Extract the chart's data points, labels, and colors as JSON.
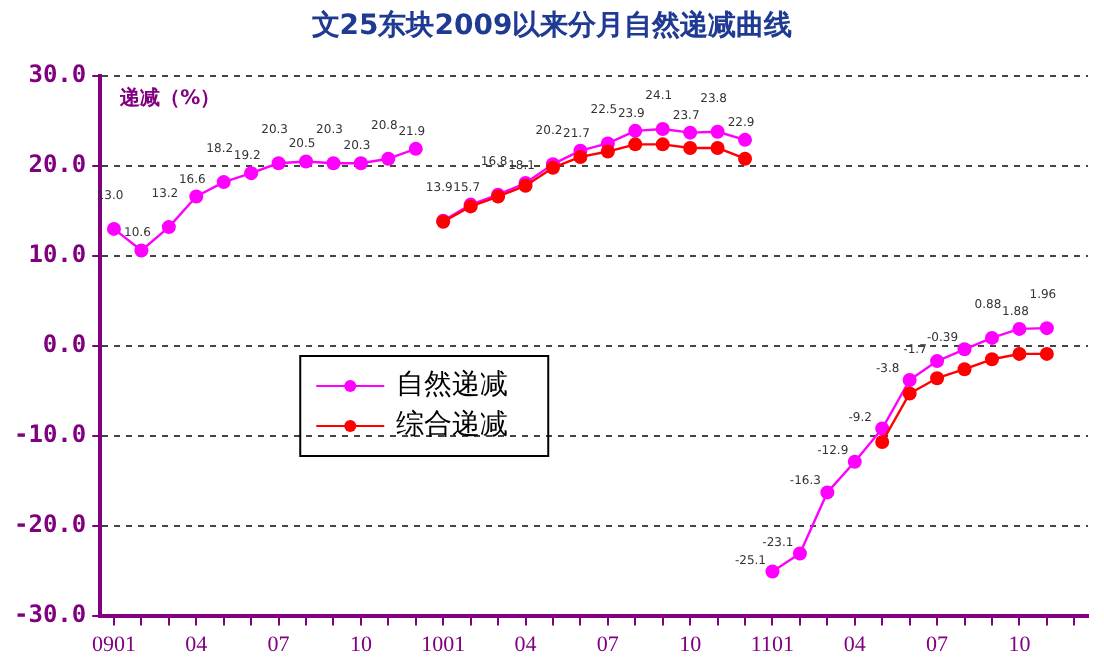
{
  "chart_data": {
    "type": "line",
    "title": "文25东块2009以来分月自然递减曲线",
    "ylabel": "递减（%）",
    "categories": [
      "0901",
      null,
      null,
      "04",
      null,
      null,
      "07",
      null,
      null,
      "10",
      null,
      null,
      "1001",
      null,
      null,
      "04",
      null,
      null,
      "07",
      null,
      null,
      "10",
      null,
      null,
      "1101",
      null,
      null,
      "04",
      null,
      null,
      "07",
      null,
      null,
      "10",
      null,
      null
    ],
    "series": [
      {
        "name": "自然递减",
        "color": "#ff00ff",
        "values": [
          13.0,
          10.6,
          13.2,
          16.6,
          18.2,
          19.2,
          20.3,
          20.5,
          20.3,
          20.3,
          20.8,
          21.9,
          null,
          null,
          null,
          null,
          null,
          null,
          null,
          null,
          null,
          null,
          null,
          null,
          null,
          null,
          null,
          null,
          null,
          null,
          null,
          null,
          null,
          null,
          null,
          null
        ],
        "value_labels": [
          "13.0",
          "10.6",
          "13.2",
          "16.6",
          "18.2",
          "19.2",
          "20.3",
          "20.5",
          "20.3",
          "20.3",
          "20.8",
          "21.9",
          null,
          null,
          null,
          null,
          null,
          null,
          null,
          null,
          null,
          null,
          null,
          null,
          null,
          null,
          null,
          null,
          null,
          null,
          null,
          null,
          null,
          null,
          null,
          null
        ]
      },
      {
        "color": "#ff00ff",
        "values": [
          null,
          null,
          null,
          null,
          null,
          null,
          null,
          null,
          null,
          null,
          null,
          null,
          13.9,
          15.7,
          16.8,
          18.1,
          20.2,
          21.7,
          22.5,
          23.9,
          24.1,
          23.7,
          23.8,
          22.9,
          null,
          null,
          null,
          null,
          null,
          null,
          null,
          null,
          null,
          null,
          null,
          null
        ],
        "value_labels": [
          null,
          null,
          null,
          null,
          null,
          null,
          null,
          null,
          null,
          null,
          null,
          null,
          "13.9",
          "15.7",
          "16.8",
          "18.1",
          "20.2",
          "21.7",
          "22.5",
          "23.9",
          "24.1",
          "23.7",
          "23.8",
          "22.9",
          null,
          null,
          null,
          null,
          null,
          null,
          null,
          null,
          null,
          null,
          null,
          null
        ]
      },
      {
        "color": "#ff00ff",
        "values": [
          null,
          null,
          null,
          null,
          null,
          null,
          null,
          null,
          null,
          null,
          null,
          null,
          null,
          null,
          null,
          null,
          null,
          null,
          null,
          null,
          null,
          null,
          null,
          null,
          -25.1,
          -23.1,
          -16.3,
          -12.9,
          -9.2,
          -3.8,
          -1.7,
          -0.39,
          0.88,
          1.88,
          1.96,
          null
        ],
        "value_labels": [
          null,
          null,
          null,
          null,
          null,
          null,
          null,
          null,
          null,
          null,
          null,
          null,
          null,
          null,
          null,
          null,
          null,
          null,
          null,
          null,
          null,
          null,
          null,
          null,
          "-25.1",
          "-23.1",
          "-16.3",
          "-12.9",
          "-9.2",
          "-3.8",
          "-1.7",
          "-0.39",
          "0.88",
          "1.88",
          "1.96",
          null
        ]
      },
      {
        "name": "综合递减",
        "color": "#ff0000",
        "values": [
          null,
          null,
          null,
          null,
          null,
          null,
          null,
          null,
          null,
          null,
          null,
          null,
          13.8,
          15.5,
          16.6,
          17.8,
          19.8,
          21.0,
          21.6,
          22.4,
          22.4,
          22.0,
          22.0,
          20.8,
          null,
          null,
          null,
          null,
          null,
          null,
          null,
          null,
          null,
          null,
          null,
          null
        ]
      },
      {
        "color": "#ff0000",
        "values": [
          null,
          null,
          null,
          null,
          null,
          null,
          null,
          null,
          null,
          null,
          null,
          null,
          null,
          null,
          null,
          null,
          null,
          null,
          null,
          null,
          null,
          null,
          null,
          null,
          null,
          null,
          null,
          null,
          -10.7,
          -5.3,
          -3.6,
          -2.6,
          -1.5,
          -0.9,
          -0.9,
          null
        ]
      }
    ],
    "ylim": [
      -30,
      30
    ],
    "yticks": [
      {
        "value": -30,
        "label": "-30.0"
      },
      {
        "value": -20,
        "label": "-20.0"
      },
      {
        "value": -10,
        "label": "-10.0"
      },
      {
        "value": 0,
        "label": "0.0"
      },
      {
        "value": 10,
        "label": "10.0"
      },
      {
        "value": 20,
        "label": "20.0"
      },
      {
        "value": 30,
        "label": "30.0"
      }
    ],
    "grid": "y",
    "legend": "center left",
    "marker": "circle",
    "line_style": "solid"
  }
}
